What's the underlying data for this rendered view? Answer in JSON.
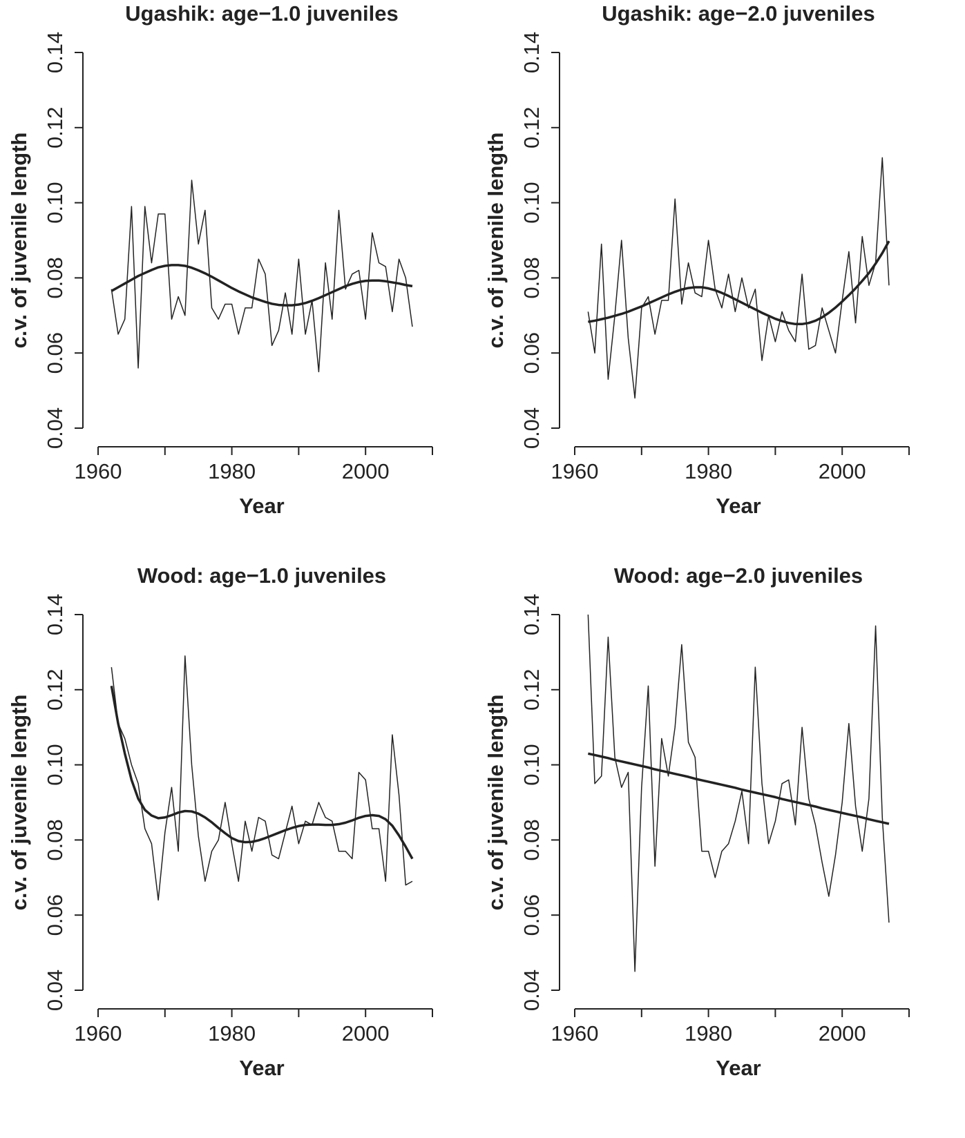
{
  "chart_data": [
    {
      "type": "line",
      "title": "Ugashik: age−1.0 juveniles",
      "xlabel": "Year",
      "ylabel": "c.v. of juvenile length",
      "x": [
        1962,
        1963,
        1964,
        1965,
        1966,
        1967,
        1968,
        1969,
        1970,
        1971,
        1972,
        1973,
        1974,
        1975,
        1976,
        1977,
        1978,
        1979,
        1980,
        1981,
        1982,
        1983,
        1984,
        1985,
        1986,
        1987,
        1988,
        1989,
        1990,
        1991,
        1992,
        1993,
        1994,
        1995,
        1996,
        1997,
        1998,
        1999,
        2000,
        2001,
        2002,
        2003,
        2004,
        2005,
        2006,
        2007
      ],
      "series": [
        {
          "color": "#222222",
          "linewidth": 1.5,
          "values": [
            0.077,
            0.065,
            0.069,
            0.099,
            0.056,
            0.099,
            0.084,
            0.097,
            0.097,
            0.069,
            0.075,
            0.07,
            0.106,
            0.089,
            0.098,
            0.072,
            0.069,
            0.073,
            0.073,
            0.065,
            0.072,
            0.072,
            0.085,
            0.081,
            0.062,
            0.066,
            0.076,
            0.065,
            0.085,
            0.065,
            0.074,
            0.055,
            0.084,
            0.069,
            0.098,
            0.077,
            0.081,
            0.082,
            0.069,
            0.092,
            0.084,
            0.083,
            0.071,
            0.085,
            0.08,
            0.067
          ]
        },
        {
          "color": "#222222",
          "linewidth": 3.5,
          "values": [
            0.0765,
            0.0775,
            0.0785,
            0.0795,
            0.0805,
            0.0813,
            0.0821,
            0.0828,
            0.0832,
            0.0834,
            0.0834,
            0.0832,
            0.0827,
            0.082,
            0.0812,
            0.0803,
            0.0793,
            0.0783,
            0.0773,
            0.0764,
            0.0756,
            0.0748,
            0.0742,
            0.0736,
            0.0731,
            0.0728,
            0.0727,
            0.0727,
            0.0729,
            0.0733,
            0.0739,
            0.0746,
            0.0754,
            0.0762,
            0.077,
            0.0778,
            0.0784,
            0.0789,
            0.0792,
            0.0793,
            0.0793,
            0.0791,
            0.0788,
            0.0785,
            0.0781,
            0.0778
          ]
        }
      ],
      "xlim": [
        1960,
        2010
      ],
      "xticks": [
        1960,
        1980,
        2000
      ],
      "minor_xticks": [
        1970,
        1990,
        2010
      ],
      "ylim": [
        0.04,
        0.14
      ],
      "yticks": [
        0.04,
        0.06,
        0.08,
        {
          "value": 0.1,
          "label": "0.10"
        },
        0.12,
        0.14
      ]
    },
    {
      "type": "line",
      "title": "Ugashik: age−2.0 juveniles",
      "xlabel": "Year",
      "ylabel": "c.v. of juvenile length",
      "x": [
        1962,
        1963,
        1964,
        1965,
        1966,
        1967,
        1968,
        1969,
        1970,
        1971,
        1972,
        1973,
        1974,
        1975,
        1976,
        1977,
        1978,
        1979,
        1980,
        1981,
        1982,
        1983,
        1984,
        1985,
        1986,
        1987,
        1988,
        1989,
        1990,
        1991,
        1992,
        1993,
        1994,
        1995,
        1996,
        1997,
        1998,
        1999,
        2000,
        2001,
        2002,
        2003,
        2004,
        2005,
        2006,
        2007
      ],
      "series": [
        {
          "color": "#222222",
          "linewidth": 1.5,
          "values": [
            0.071,
            0.06,
            0.089,
            0.053,
            0.07,
            0.09,
            0.064,
            0.048,
            0.072,
            0.075,
            0.065,
            0.074,
            0.074,
            0.101,
            0.073,
            0.084,
            0.076,
            0.075,
            0.09,
            0.077,
            0.072,
            0.081,
            0.071,
            0.08,
            0.072,
            0.077,
            0.058,
            0.07,
            0.063,
            0.071,
            0.066,
            0.063,
            0.081,
            0.061,
            0.062,
            0.072,
            0.066,
            0.06,
            0.074,
            0.087,
            0.068,
            0.091,
            0.078,
            0.084,
            0.112,
            0.078
          ]
        },
        {
          "color": "#222222",
          "linewidth": 3.5,
          "values": [
            0.0683,
            0.0686,
            0.069,
            0.0694,
            0.0699,
            0.0704,
            0.071,
            0.0717,
            0.0724,
            0.0732,
            0.074,
            0.0748,
            0.0756,
            0.0763,
            0.0769,
            0.0773,
            0.0775,
            0.0775,
            0.0772,
            0.0767,
            0.076,
            0.0752,
            0.0743,
            0.0734,
            0.0725,
            0.0716,
            0.0707,
            0.0699,
            0.0691,
            0.0685,
            0.068,
            0.0677,
            0.0677,
            0.068,
            0.0686,
            0.0695,
            0.0707,
            0.0721,
            0.0737,
            0.0754,
            0.0772,
            0.0792,
            0.0813,
            0.0838,
            0.0866,
            0.0898
          ]
        }
      ],
      "xlim": [
        1960,
        2010
      ],
      "xticks": [
        1960,
        1980,
        2000
      ],
      "minor_xticks": [
        1970,
        1990,
        2010
      ],
      "ylim": [
        0.04,
        0.14
      ],
      "yticks": [
        0.04,
        0.06,
        0.08,
        {
          "value": 0.1,
          "label": "0.10"
        },
        0.12,
        0.14
      ]
    },
    {
      "type": "line",
      "title": "Wood: age−1.0 juveniles",
      "xlabel": "Year",
      "ylabel": "c.v. of juvenile length",
      "x": [
        1962,
        1963,
        1964,
        1965,
        1966,
        1967,
        1968,
        1969,
        1970,
        1971,
        1972,
        1973,
        1974,
        1975,
        1976,
        1977,
        1978,
        1979,
        1980,
        1981,
        1982,
        1983,
        1984,
        1985,
        1986,
        1987,
        1988,
        1989,
        1990,
        1991,
        1992,
        1993,
        1994,
        1995,
        1996,
        1997,
        1998,
        1999,
        2000,
        2001,
        2002,
        2003,
        2004,
        2005,
        2006,
        2007
      ],
      "series": [
        {
          "color": "#222222",
          "linewidth": 1.5,
          "values": [
            0.126,
            0.111,
            0.107,
            0.1,
            0.095,
            0.083,
            0.079,
            0.064,
            0.082,
            0.094,
            0.077,
            0.129,
            0.1,
            0.081,
            0.069,
            0.077,
            0.08,
            0.09,
            0.079,
            0.069,
            0.085,
            0.077,
            0.086,
            0.085,
            0.076,
            0.075,
            0.082,
            0.089,
            0.079,
            0.085,
            0.084,
            0.09,
            0.086,
            0.085,
            0.077,
            0.077,
            0.075,
            0.098,
            0.096,
            0.083,
            0.083,
            0.069,
            0.108,
            0.092,
            0.068,
            0.069
          ]
        },
        {
          "color": "#222222",
          "linewidth": 3.5,
          "values": [
            0.121,
            0.111,
            0.103,
            0.096,
            0.091,
            0.088,
            0.0865,
            0.0858,
            0.086,
            0.0866,
            0.0873,
            0.0877,
            0.0876,
            0.087,
            0.086,
            0.0847,
            0.0832,
            0.0818,
            0.0805,
            0.0797,
            0.0794,
            0.0795,
            0.0799,
            0.0805,
            0.0812,
            0.0819,
            0.0826,
            0.0832,
            0.0837,
            0.084,
            0.0841,
            0.0841,
            0.084,
            0.084,
            0.0842,
            0.0846,
            0.0852,
            0.0859,
            0.0864,
            0.0866,
            0.0864,
            0.0855,
            0.0838,
            0.0812,
            0.0782,
            0.075
          ]
        }
      ],
      "xlim": [
        1960,
        2010
      ],
      "xticks": [
        1960,
        1980,
        2000
      ],
      "minor_xticks": [
        1970,
        1990,
        2010
      ],
      "ylim": [
        0.04,
        0.14
      ],
      "yticks": [
        0.04,
        0.06,
        0.08,
        {
          "value": 0.1,
          "label": "0.10"
        },
        0.12,
        0.14
      ]
    },
    {
      "type": "line",
      "title": "Wood: age−2.0 juveniles",
      "xlabel": "Year",
      "ylabel": "c.v. of juvenile length",
      "x": [
        1962,
        1963,
        1964,
        1965,
        1966,
        1967,
        1968,
        1969,
        1970,
        1971,
        1972,
        1973,
        1974,
        1975,
        1976,
        1977,
        1978,
        1979,
        1980,
        1981,
        1982,
        1983,
        1984,
        1985,
        1986,
        1987,
        1988,
        1989,
        1990,
        1991,
        1992,
        1993,
        1994,
        1995,
        1996,
        1997,
        1998,
        1999,
        2000,
        2001,
        2002,
        2003,
        2004,
        2005,
        2006,
        2007
      ],
      "series": [
        {
          "color": "#222222",
          "linewidth": 1.5,
          "values": [
            0.14,
            0.095,
            0.097,
            0.134,
            0.102,
            0.094,
            0.098,
            0.045,
            0.094,
            0.121,
            0.073,
            0.107,
            0.097,
            0.11,
            0.132,
            0.106,
            0.102,
            0.077,
            0.077,
            0.07,
            0.077,
            0.079,
            0.085,
            0.093,
            0.079,
            0.126,
            0.095,
            0.079,
            0.085,
            0.095,
            0.096,
            0.084,
            0.11,
            0.091,
            0.084,
            0.074,
            0.065,
            0.076,
            0.09,
            0.111,
            0.089,
            0.077,
            0.091,
            0.137,
            0.086,
            0.058
          ]
        },
        {
          "color": "#222222",
          "linewidth": 3.5,
          "values": [
            0.103,
            0.1026,
            0.1022,
            0.1018,
            0.1013,
            0.1009,
            0.1005,
            0.1001,
            0.0997,
            0.0993,
            0.0988,
            0.0984,
            0.098,
            0.0976,
            0.0972,
            0.0968,
            0.0963,
            0.0959,
            0.0955,
            0.0951,
            0.0947,
            0.0943,
            0.0939,
            0.0934,
            0.093,
            0.0926,
            0.0922,
            0.0918,
            0.0914,
            0.0909,
            0.0905,
            0.0901,
            0.0897,
            0.0893,
            0.0889,
            0.0884,
            0.088,
            0.0876,
            0.0872,
            0.0868,
            0.0864,
            0.086,
            0.0855,
            0.0851,
            0.0847,
            0.0843
          ]
        }
      ],
      "xlim": [
        1960,
        2010
      ],
      "xticks": [
        1960,
        1980,
        2000
      ],
      "minor_xticks": [
        1970,
        1990,
        2010
      ],
      "ylim": [
        0.04,
        0.14
      ],
      "yticks": [
        0.04,
        0.06,
        0.08,
        {
          "value": 0.1,
          "label": "0.10"
        },
        0.12,
        0.14
      ]
    }
  ]
}
